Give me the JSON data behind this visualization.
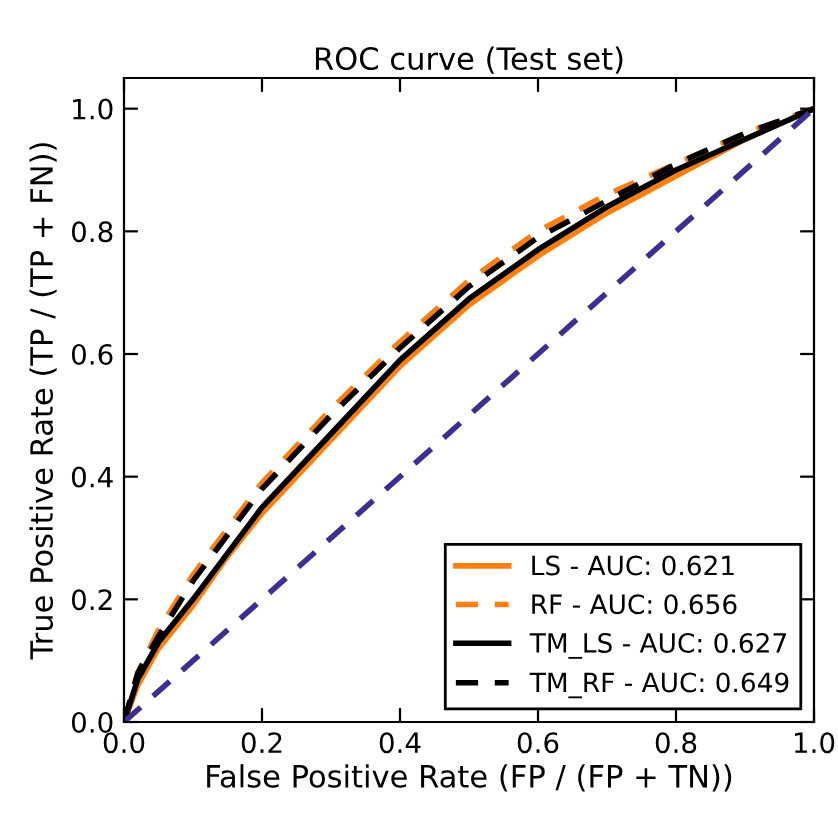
{
  "chart_data": {
    "type": "line",
    "title": "ROC curve (Test set)",
    "xlabel": "False Positive Rate (FP / (FP + TN))",
    "ylabel": "True Positive Rate (TP / (TP + FN))",
    "xlim": [
      0,
      1
    ],
    "ylim": [
      0,
      1.05
    ],
    "xticks": [
      {
        "value": 0,
        "label": "0.0"
      },
      0.2,
      0.4,
      0.6,
      0.8,
      {
        "value": 1,
        "label": "1.0"
      }
    ],
    "yticks": [
      {
        "value": 0,
        "label": "0.0"
      },
      0.2,
      0.4,
      0.6,
      0.8,
      {
        "value": 1,
        "label": "1.0"
      }
    ],
    "grid": false,
    "legend": "bottom right",
    "marker": "none",
    "series": [
      {
        "name": "LS - AUC: 0.621",
        "color": "#ff7f0e",
        "line_style": "solid",
        "x": [
          0,
          0.02,
          0.05,
          0.1,
          0.15,
          0.2,
          0.3,
          0.4,
          0.5,
          0.6,
          0.7,
          0.8,
          0.9,
          1
        ],
        "values": [
          0,
          0.06,
          0.12,
          0.19,
          0.27,
          0.34,
          0.46,
          0.58,
          0.68,
          0.76,
          0.83,
          0.89,
          0.95,
          1
        ]
      },
      {
        "name": "RF - AUC: 0.656",
        "color": "#ff7f0e",
        "line_style": "dashed",
        "x": [
          0,
          0.02,
          0.05,
          0.1,
          0.2,
          0.3,
          0.4,
          0.5,
          0.6,
          0.7,
          0.8,
          0.9,
          1
        ],
        "values": [
          0,
          0.08,
          0.15,
          0.24,
          0.39,
          0.51,
          0.62,
          0.72,
          0.8,
          0.86,
          0.91,
          0.96,
          1
        ]
      },
      {
        "name": "TM_LS - AUC: 0.627",
        "color": "#000000",
        "line_style": "solid",
        "x": [
          0,
          0.02,
          0.05,
          0.1,
          0.2,
          0.3,
          0.4,
          0.5,
          0.6,
          0.7,
          0.8,
          0.9,
          1
        ],
        "values": [
          0,
          0.07,
          0.13,
          0.2,
          0.35,
          0.47,
          0.59,
          0.69,
          0.77,
          0.84,
          0.9,
          0.95,
          1
        ]
      },
      {
        "name": "TM_RF - AUC: 0.649",
        "color": "#000000",
        "line_style": "dashed",
        "x": [
          0,
          0.02,
          0.05,
          0.1,
          0.2,
          0.3,
          0.4,
          0.5,
          0.6,
          0.7,
          0.8,
          0.9,
          1
        ],
        "values": [
          0,
          0.08,
          0.14,
          0.23,
          0.38,
          0.5,
          0.61,
          0.71,
          0.79,
          0.85,
          0.91,
          0.96,
          1
        ]
      },
      {
        "color": "#3d2f8f",
        "line_style": "dashed",
        "x": [
          0,
          1
        ],
        "values": [
          0,
          1
        ]
      }
    ]
  }
}
